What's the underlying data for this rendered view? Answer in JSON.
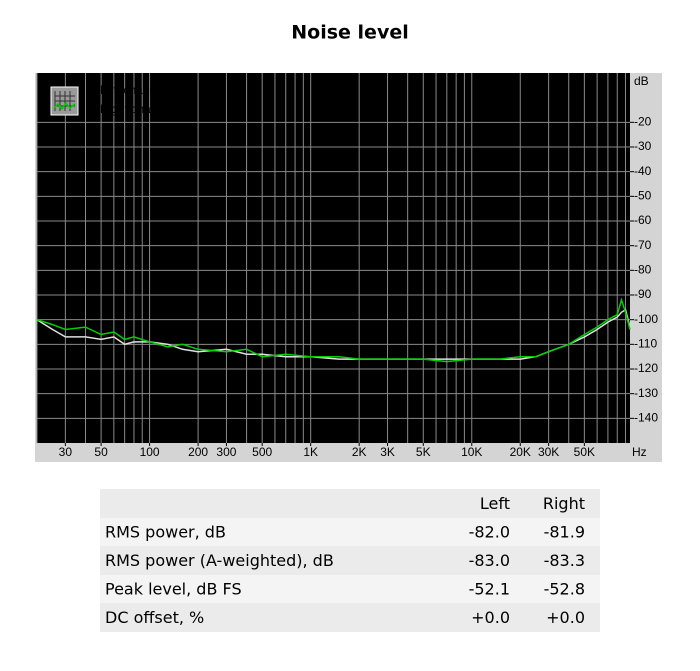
{
  "chart_data": {
    "type": "line",
    "title": "Noise level",
    "xlabel": "Hz",
    "ylabel": "dB",
    "xscale": "log",
    "xlim": [
      20,
      96000
    ],
    "ylim": [
      -150,
      0
    ],
    "xticks": [
      30,
      50,
      100,
      200,
      300,
      500,
      {
        "value": 1000,
        "label": "1K"
      },
      {
        "value": 2000,
        "label": "2K"
      },
      {
        "value": 3000,
        "label": "3K"
      },
      {
        "value": 5000,
        "label": "5K"
      },
      {
        "value": 10000,
        "label": "10K"
      },
      {
        "value": 20000,
        "label": "20K"
      },
      {
        "value": 30000,
        "label": "30K"
      },
      {
        "value": 50000,
        "label": "50K"
      }
    ],
    "xgrid": [
      20,
      30,
      40,
      50,
      60,
      70,
      80,
      90,
      100,
      200,
      300,
      400,
      500,
      600,
      700,
      800,
      900,
      1000,
      2000,
      3000,
      4000,
      5000,
      6000,
      7000,
      8000,
      9000,
      10000,
      20000,
      30000,
      40000,
      50000,
      60000,
      70000,
      80000,
      90000
    ],
    "yticks": [
      -20,
      -30,
      -40,
      -50,
      -60,
      -70,
      -80,
      -90,
      -100,
      -110,
      -120,
      -130,
      -140
    ],
    "grid": true,
    "legend": "top-left",
    "x": [
      20,
      25,
      30,
      40,
      50,
      60,
      70,
      80,
      100,
      130,
      160,
      200,
      300,
      400,
      500,
      700,
      1000,
      1500,
      2000,
      3000,
      5000,
      7000,
      10000,
      15000,
      20000,
      25000,
      30000,
      40000,
      50000,
      60000,
      70000,
      80000,
      85000,
      90000,
      96000
    ],
    "series": [
      {
        "name": "Left channel",
        "color": "#e0e0e0",
        "values": [
          -100,
          -104,
          -107,
          -107,
          -108,
          -107,
          -110,
          -109,
          -109,
          -110,
          -112,
          -113,
          -112,
          -114,
          -114,
          -115,
          -115,
          -116,
          -116,
          -116,
          -116,
          -116,
          -116,
          -116,
          -116,
          -115,
          -113,
          -110,
          -107,
          -104,
          -101,
          -99,
          -97,
          -96,
          -103
        ]
      },
      {
        "name": "Right channel",
        "color": "#00d000",
        "values": [
          -100,
          -102,
          -104,
          -103,
          -106,
          -105,
          -108,
          -107,
          -109,
          -111,
          -110,
          -112,
          -113,
          -112,
          -115,
          -114,
          -115,
          -115,
          -116,
          -116,
          -116,
          -117,
          -116,
          -116,
          -115,
          -115,
          -113,
          -110,
          -106,
          -103,
          -100,
          -98,
          -92,
          -97,
          -104
        ]
      }
    ]
  },
  "table": {
    "columns": [
      "Left",
      "Right"
    ],
    "rows": [
      {
        "label": "RMS power, dB",
        "values": [
          "-82.0",
          "-81.9"
        ]
      },
      {
        "label": "RMS power (A-weighted), dB",
        "values": [
          "-83.0",
          "-83.3"
        ]
      },
      {
        "label": "Peak level, dB FS",
        "values": [
          "-52.1",
          "-52.8"
        ]
      },
      {
        "label": "DC offset, %",
        "values": [
          "+0.0",
          "+0.0"
        ]
      }
    ]
  }
}
